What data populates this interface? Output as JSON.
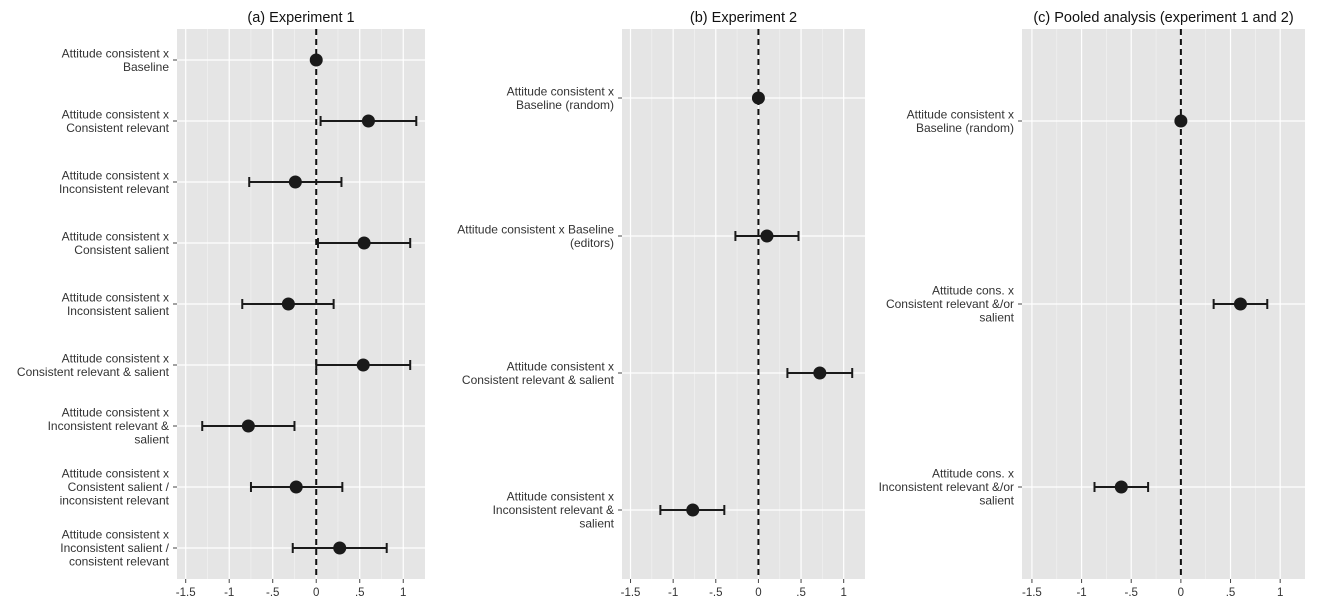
{
  "chart_data": [
    {
      "type": "forest",
      "title": "(a) Experiment 1",
      "xlim": [
        -1.6,
        1.25
      ],
      "xticks": [
        -1.5,
        -1,
        -0.5,
        0,
        0.5,
        1
      ],
      "xtick_labels": [
        "-1.5",
        "-1",
        "-.5",
        "0",
        ".5",
        "1"
      ],
      "reference_line": 0,
      "grid": true,
      "series": [
        {
          "label": [
            "Attitude consistent x",
            "Baseline"
          ],
          "estimate": 0.0,
          "ci": null
        },
        {
          "label": [
            "Attitude consistent x",
            "Consistent relevant"
          ],
          "estimate": 0.6,
          "ci": [
            0.05,
            1.15
          ]
        },
        {
          "label": [
            "Attitude consistent x",
            "Inconsistent relevant"
          ],
          "estimate": -0.24,
          "ci": [
            -0.77,
            0.29
          ]
        },
        {
          "label": [
            "Attitude consistent x",
            "Consistent salient"
          ],
          "estimate": 0.55,
          "ci": [
            0.02,
            1.08
          ]
        },
        {
          "label": [
            "Attitude consistent x",
            "Inconsistent salient"
          ],
          "estimate": -0.32,
          "ci": [
            -0.85,
            0.2
          ]
        },
        {
          "label": [
            "Attitude consistent x",
            "Consistent relevant & salient"
          ],
          "estimate": 0.54,
          "ci": [
            0.0,
            1.08
          ]
        },
        {
          "label": [
            "Attitude consistent x",
            "Inconsistent relevant &",
            "salient"
          ],
          "estimate": -0.78,
          "ci": [
            -1.31,
            -0.25
          ]
        },
        {
          "label": [
            "Attitude consistent x",
            "Consistent salient /",
            "inconsistent relevant"
          ],
          "estimate": -0.23,
          "ci": [
            -0.75,
            0.3
          ]
        },
        {
          "label": [
            "Attitude consistent x",
            "Inconsistent salient /",
            "consistent relevant"
          ],
          "estimate": 0.27,
          "ci": [
            -0.27,
            0.81
          ]
        }
      ]
    },
    {
      "type": "forest",
      "title": "(b) Experiment 2",
      "xlim": [
        -1.6,
        1.25
      ],
      "xticks": [
        -1.5,
        -1,
        -0.5,
        0,
        0.5,
        1
      ],
      "xtick_labels": [
        "-1.5",
        "-1",
        "-.5",
        "0",
        ".5",
        "1"
      ],
      "reference_line": 0,
      "grid": true,
      "series": [
        {
          "label": [
            "Attitude consistent x",
            "Baseline (random)"
          ],
          "estimate": 0.0,
          "ci": null
        },
        {
          "label": [
            "Attitude consistent x Baseline",
            "(editors)"
          ],
          "estimate": 0.1,
          "ci": [
            -0.27,
            0.47
          ]
        },
        {
          "label": [
            "Attitude consistent x",
            "Consistent relevant & salient"
          ],
          "estimate": 0.72,
          "ci": [
            0.34,
            1.1
          ]
        },
        {
          "label": [
            "Attitude consistent x",
            "Inconsistent relevant &",
            "salient"
          ],
          "estimate": -0.77,
          "ci": [
            -1.15,
            -0.4
          ]
        }
      ]
    },
    {
      "type": "forest",
      "title": "(c) Pooled analysis (experiment 1 and 2)",
      "xlim": [
        -1.6,
        1.25
      ],
      "xticks": [
        -1.5,
        -1,
        -0.5,
        0,
        0.5,
        1
      ],
      "xtick_labels": [
        "-1.5",
        "-1",
        "-.5",
        "0",
        ".5",
        "1"
      ],
      "reference_line": 0,
      "grid": true,
      "series": [
        {
          "label": [
            "Attitude consistent x",
            "Baseline (random)"
          ],
          "estimate": 0.0,
          "ci": null
        },
        {
          "label": [
            "Attitude cons. x",
            "Consistent relevant &/or",
            "salient"
          ],
          "estimate": 0.6,
          "ci": [
            0.33,
            0.87
          ]
        },
        {
          "label": [
            "Attitude cons. x",
            "Inconsistent relevant &/or",
            "salient"
          ],
          "estimate": -0.6,
          "ci": [
            -0.87,
            -0.33
          ]
        }
      ]
    }
  ],
  "colors": {
    "panel_bg": "#e5e5e5",
    "grid": "#ffffff",
    "point": "#1a1a1a",
    "text": "#333333"
  }
}
